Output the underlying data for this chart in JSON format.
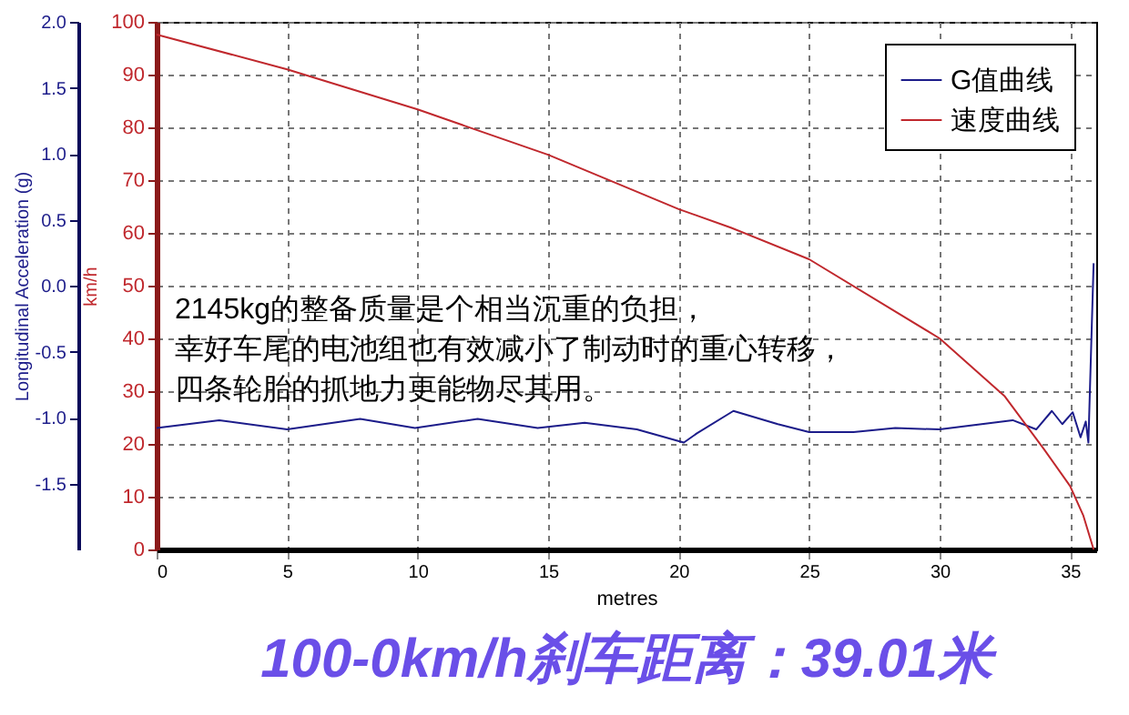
{
  "chart_data": {
    "type": "line",
    "title": "100-0km/h刹车距离：39.01米",
    "xlabel": "metres",
    "ylabel": "Longitudinal Acceleration (g)",
    "y2label": "km/h",
    "xlim": [
      0,
      36
    ],
    "xticks": [
      0,
      5,
      10,
      15,
      20,
      25,
      30,
      35
    ],
    "ylim": [
      -2,
      2
    ],
    "yticks": [
      {
        "value": 2,
        "label": "2.0"
      },
      1.5,
      {
        "value": 1,
        "label": "1.0"
      },
      0.5,
      {
        "value": 0,
        "label": "0.0"
      },
      -0.5,
      {
        "value": -1,
        "label": "-1.0"
      },
      -1.5
    ],
    "y2lim": [
      0,
      100
    ],
    "y2ticks": [
      0,
      10,
      20,
      30,
      40,
      50,
      60,
      70,
      80,
      90,
      100
    ],
    "grid": true,
    "legend": "top right",
    "annotations": [
      "2145kg的整备质量是个相当沉重的负担，幸好车尾的电池组也有效减小了制动时的重心转移，四条轮胎的抓地力更能物尽其用。"
    ],
    "series": [
      {
        "name": "G值曲线",
        "color": "#1c1c8a",
        "x": [
          0,
          2.4,
          5,
          7.8,
          9.9,
          12.3,
          14.6,
          16.4,
          18.4,
          20.2,
          20.7,
          22.1,
          23.8,
          25,
          26.7,
          28.3,
          30,
          32.8,
          33.7,
          34.3,
          34.7,
          35.1,
          35.4,
          35.6,
          35.7,
          35.9
        ],
        "values": [
          -1.08,
          -1.02,
          -1.09,
          -1.01,
          -1.08,
          -1.01,
          -1.08,
          -1.04,
          -1.09,
          -1.19,
          -1.12,
          -0.95,
          -1.05,
          -1.11,
          -1.11,
          -1.08,
          -1.09,
          -1.02,
          -1.09,
          -0.95,
          -1.05,
          -0.96,
          -1.15,
          -1.03,
          -1.19,
          0.17
        ]
      },
      {
        "name": "速度曲线",
        "color": "#c0282d",
        "axis": "y2",
        "x": [
          0,
          5,
          10,
          15,
          20,
          22,
          25,
          30,
          32.5,
          34,
          35,
          35.5,
          35.9
        ],
        "values": [
          97.6,
          91,
          83.4,
          74.8,
          64.5,
          61,
          55,
          40,
          29,
          19,
          12,
          6.5,
          0
        ]
      }
    ]
  }
}
